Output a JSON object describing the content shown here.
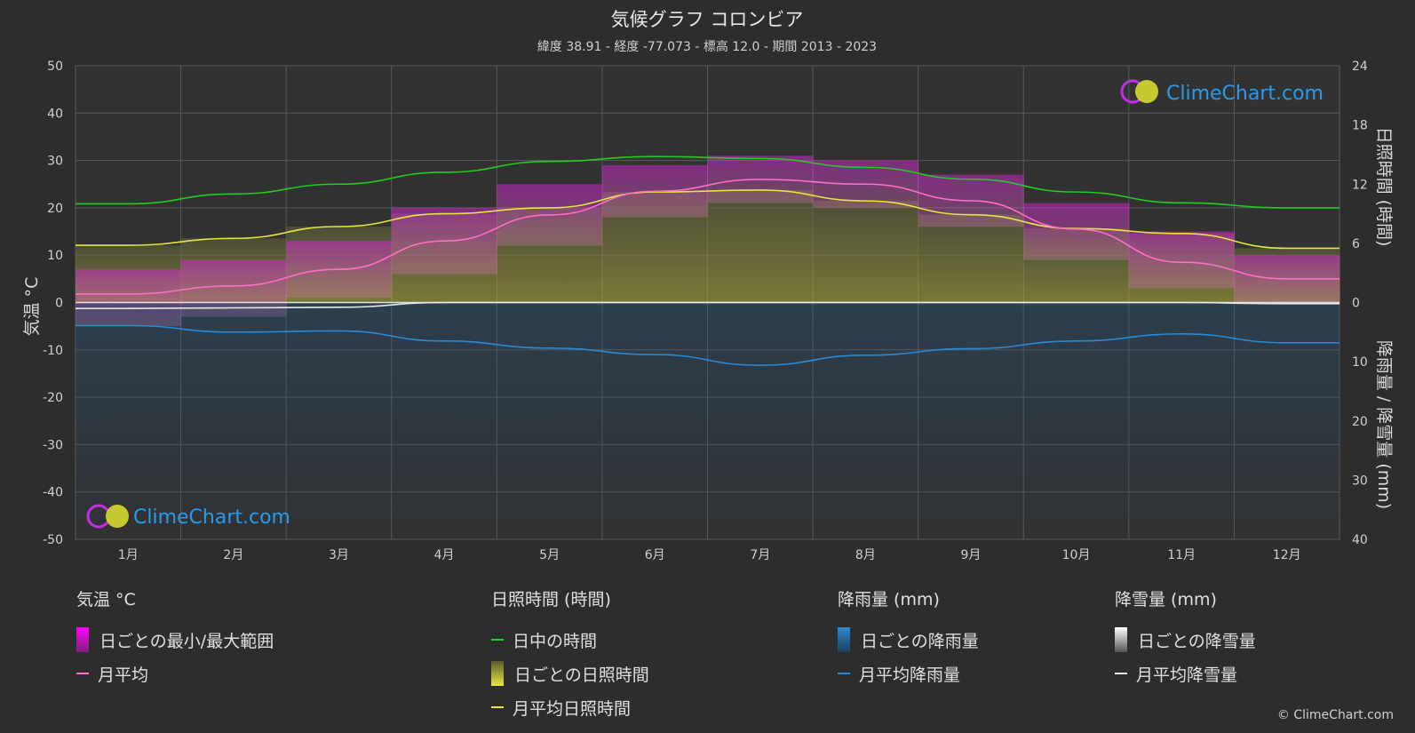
{
  "title": "気候グラフ コロンビア",
  "subtitle": "緯度 38.91 - 経度 -77.073 - 標高 12.0 - 期間 2013 - 2023",
  "watermark": "ClimeChart.com",
  "copyright": "© ClimeChart.com",
  "chart_data": {
    "type": "line",
    "categories": [
      "1月",
      "2月",
      "3月",
      "4月",
      "5月",
      "6月",
      "7月",
      "8月",
      "9月",
      "10月",
      "11月",
      "12月"
    ],
    "left_axis": {
      "label": "気温 °C",
      "min": -50,
      "max": 50,
      "ticks": [
        50,
        40,
        30,
        20,
        10,
        0,
        -10,
        -20,
        -30,
        -40,
        -50
      ]
    },
    "right_axis_top": {
      "label": "日照時間 (時間)",
      "min": 0,
      "max": 24,
      "ticks": [
        24,
        18,
        12,
        6,
        0
      ]
    },
    "right_axis_bottom": {
      "label": "降雨量 / 降雪量 (mm)",
      "min": 0,
      "max": 40,
      "ticks": [
        0,
        10,
        20,
        30,
        40
      ]
    },
    "grid": true,
    "series": [
      {
        "name": "日中の時間",
        "axis": "sun",
        "color": "#22cc22",
        "values": [
          10.0,
          11.0,
          12.0,
          13.2,
          14.3,
          14.8,
          14.6,
          13.7,
          12.5,
          11.2,
          10.1,
          9.6
        ]
      },
      {
        "name": "月平均日照時間",
        "axis": "sun",
        "color": "#e6e63c",
        "values": [
          5.8,
          6.5,
          7.7,
          9.0,
          9.6,
          11.2,
          11.4,
          10.3,
          8.9,
          7.5,
          7.0,
          5.5
        ]
      },
      {
        "name": "月平均",
        "axis": "temp",
        "color": "#ff6ec7",
        "values": [
          1.8,
          3.5,
          7.0,
          13.0,
          18.5,
          23.5,
          26.0,
          25.0,
          21.5,
          15.5,
          8.5,
          5.0
        ]
      },
      {
        "name": "月平均降雨量",
        "axis": "rain",
        "color": "#2a8ad6",
        "values": [
          3.9,
          5.0,
          4.8,
          6.5,
          7.7,
          8.8,
          10.6,
          8.9,
          7.8,
          6.5,
          5.3,
          6.8
        ]
      },
      {
        "name": "月平均降雪量",
        "axis": "rain",
        "color": "#e8e8e8",
        "values": [
          1.0,
          0.9,
          0.8,
          0.0,
          0.0,
          0.0,
          0.0,
          0.0,
          0.0,
          0.0,
          0.0,
          0.2
        ]
      }
    ],
    "daily_temp_range": {
      "name": "日ごとの最小/最大範囲",
      "max": [
        7,
        9,
        13,
        20,
        25,
        29,
        31,
        30,
        27,
        21,
        15,
        10
      ],
      "min": [
        -5,
        -3,
        1,
        6,
        12,
        18,
        21,
        20,
        16,
        9,
        3,
        0
      ]
    }
  },
  "legend": {
    "temp": {
      "heading": "気温 °C",
      "range_label": "日ごとの最小/最大範囲",
      "avg_label": "月平均"
    },
    "sun": {
      "heading": "日照時間 (時間)",
      "daylight_label": "日中の時間",
      "daily_label": "日ごとの日照時間",
      "avg_label": "月平均日照時間"
    },
    "rain": {
      "heading": "降雨量 (mm)",
      "daily_label": "日ごとの降雨量",
      "avg_label": "月平均降雨量"
    },
    "snow": {
      "heading": "降雪量 (mm)",
      "daily_label": "日ごとの降雪量",
      "avg_label": "月平均降雪量"
    }
  }
}
